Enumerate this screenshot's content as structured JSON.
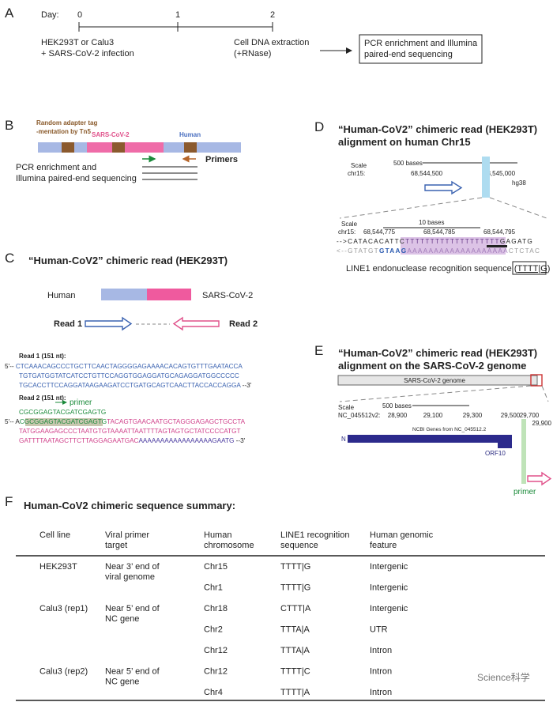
{
  "panelA": {
    "label": "A",
    "day_label": "Day:",
    "days": [
      "0",
      "1",
      "2"
    ],
    "left_text": [
      "HEK293T or Calu3",
      "+ SARS-CoV-2 infection"
    ],
    "mid_text": [
      "Cell DNA extraction",
      "(+RNase)"
    ],
    "box_text": [
      "PCR enrichment and Illumina",
      "paired-end sequencing"
    ]
  },
  "panelB": {
    "label": "B",
    "tag_label": [
      "Random adapter tag",
      "-mentation by Tn5"
    ],
    "sars": "SARS-CoV-2",
    "human": "Human",
    "primers": "Primers",
    "pcr": [
      "PCR enrichment and",
      "Illumina paired-end sequencing"
    ]
  },
  "panelC": {
    "label": "C",
    "title": "“Human-CoV2” chimeric read (HEK293T)",
    "human": "Human",
    "sars": "SARS-CoV-2",
    "read1": "Read 1",
    "read2": "Read 2",
    "read1_title": "Read 1 (151 nt):",
    "read1_start": "5'--",
    "read1_lines": [
      "CTCAAACAGCCCTGCTTCAACTAGGGGAGAAAACACAGTGTTTGAATACCA",
      "TGTGATGGTATCATCCTGTTCCAGGTGGAGGATGCAGAGGATGGCCCCC",
      "TGCACCTTCCAGGATAAGAAGATCCTGATGCAGTCAACTTACCACCAGGA"
    ],
    "read1_end": "--3'",
    "read2_title": "Read 2 (151 nt):",
    "primer": "primer",
    "primer_seq": "CGCGGAGTACGATCGAGTG",
    "read2_start": "5'-- A",
    "read2_primer": "CGCGGAGTACGATCGAGTG",
    "read2_line1": "TACAGTGAACAATGCTAGGGAGAGCTGCCTA",
    "read2_line2": "TATGGAAGAGCCCTAATGTGTAAAATTAATTTTAGTAGTGCTATCCCCATGT",
    "read2_line3": "GATTTTAATAGCTTCTTAGGAGAATGAC",
    "read2_polyA": "AAAAAAAAAAAAAAAAAGAATG",
    "read2_end": "--3'"
  },
  "panelD": {
    "label": "D",
    "title": [
      "“Human-CoV2” chimeric read (HEK293T)",
      "alignment on human Chr15"
    ],
    "scale": "Scale",
    "chr": "chr15:",
    "bases": "500 bases",
    "positions": [
      "68,544,500",
      "68,545,000"
    ],
    "assembly": "hg38",
    "zoom_scale": "Scale",
    "zoom_chr": "chr15:",
    "zoom_bases": "10 bases",
    "zoom_positions": [
      "68,544,775",
      "68,544,785",
      "68,544,795"
    ],
    "top_arrow": "-->",
    "top_left": "CATACACATTC",
    "top_t": "TTTTTTTTTTTTTTTTTTT",
    "top_right": "GAGATG",
    "bottom_arrow": "<--",
    "bottom_left": "GTATGT",
    "bottom_bold": "GTAAG",
    "bottom_a": "AAAAAAAAAAAAAAAAAAA",
    "bottom_right": "CTCTAC",
    "line1_text": "LINE1 endonuclease recognition sequence (",
    "line1_seq": "TTTT|G",
    "line1_close": ")"
  },
  "panelE": {
    "label": "E",
    "title": [
      "“Human-CoV2” chimeric read (HEK293T)",
      "alignment on the SARS-CoV-2 genome"
    ],
    "genome": "SARS-CoV-2 genome",
    "scale": "Scale",
    "chr": "NC_045512v2:",
    "bases": "500 bases",
    "positions": [
      "28,900",
      "29,100",
      "29,300",
      "29,500",
      "29,700",
      "29,900"
    ],
    "genes_label": "NCBI Genes from NC_045512.2",
    "gene_n": "N",
    "gene_orf10": "ORF10",
    "primer": "primer"
  },
  "panelF": {
    "label": "F",
    "title": "Human-CoV2 chimeric sequence summary:",
    "header": [
      [
        "Cell line"
      ],
      [
        "Viral primer",
        "target"
      ],
      [
        "Human",
        "chromosome"
      ],
      [
        "LINE1 recognition",
        "sequence"
      ],
      [
        "Human genomic",
        "feature"
      ]
    ],
    "groups": [
      {
        "cell_line": "HEK293T",
        "target": [
          "Near 3’ end of",
          "viral genome"
        ],
        "rows": [
          [
            "Chr15",
            "TTTT|G",
            "Intergenic"
          ],
          [
            "Chr1",
            "TTTT|G",
            "Intergenic"
          ]
        ]
      },
      {
        "cell_line": "Calu3 (rep1)",
        "target": [
          "Near 5’ end of",
          "NC gene"
        ],
        "rows": [
          [
            "Chr18",
            "CTTT|A",
            "Intergenic"
          ],
          [
            "Chr2",
            "TTTA|A",
            "UTR"
          ],
          [
            "Chr12",
            "TTTA|A",
            "Intron"
          ]
        ]
      },
      {
        "cell_line": "Calu3 (rep2)",
        "target": [
          "Near 5’ end of",
          "NC gene"
        ],
        "rows": [
          [
            "Chr12",
            "TTTT|C",
            "Intron"
          ],
          [
            "Chr4",
            "TTTT|A",
            "Intron"
          ]
        ]
      }
    ]
  },
  "watermark": "Science科学"
}
